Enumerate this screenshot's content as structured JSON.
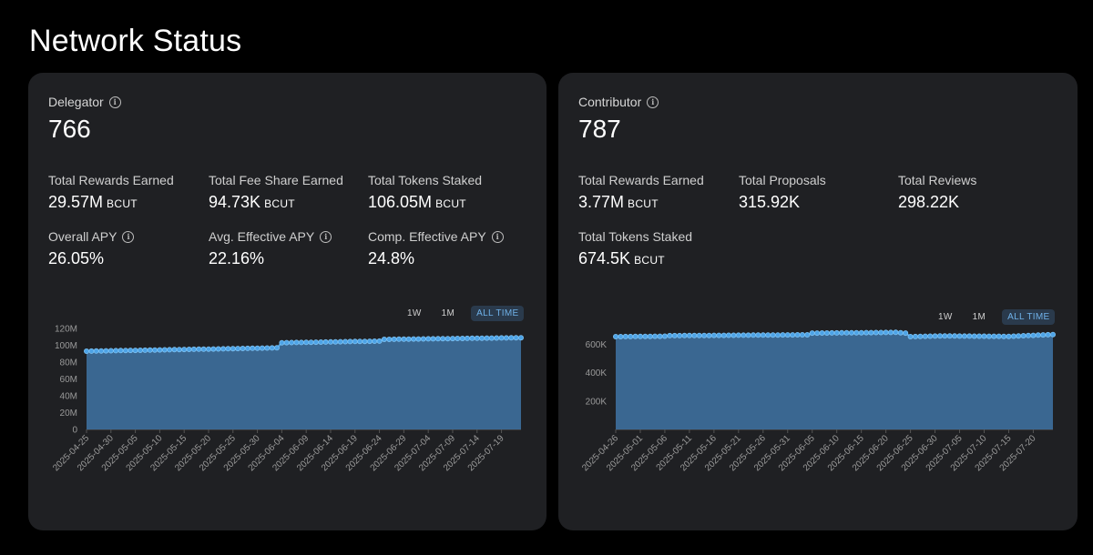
{
  "page": {
    "title": "Network Status"
  },
  "delegator": {
    "label": "Delegator",
    "count": "766",
    "stats": [
      {
        "label": "Total Rewards Earned",
        "value": "29.57M",
        "unit": "BCUT",
        "info": false
      },
      {
        "label": "Total Fee Share Earned",
        "value": "94.73K",
        "unit": "BCUT",
        "info": false
      },
      {
        "label": "Total Tokens Staked",
        "value": "106.05M",
        "unit": "BCUT",
        "info": false
      },
      {
        "label": "Overall APY",
        "value": "26.05%",
        "unit": "",
        "info": true
      },
      {
        "label": "Avg. Effective APY",
        "value": "22.16%",
        "unit": "",
        "info": true
      },
      {
        "label": "Comp. Effective APY",
        "value": "24.8%",
        "unit": "",
        "info": true
      }
    ],
    "range_tabs": [
      "1W",
      "1M",
      "ALL TIME"
    ],
    "active_range": "ALL TIME"
  },
  "contributor": {
    "label": "Contributor",
    "count": "787",
    "stats": [
      {
        "label": "Total Rewards Earned",
        "value": "3.77M",
        "unit": "BCUT",
        "info": false
      },
      {
        "label": "Total Proposals",
        "value": "315.92K",
        "unit": "",
        "info": false
      },
      {
        "label": "Total Reviews",
        "value": "298.22K",
        "unit": "",
        "info": false
      },
      {
        "label": "Total Tokens Staked",
        "value": "674.5K",
        "unit": "BCUT",
        "info": false
      }
    ],
    "range_tabs": [
      "1W",
      "1M",
      "ALL TIME"
    ],
    "active_range": "ALL TIME"
  },
  "colors": {
    "line": "#4da3e6",
    "fill": "#3d6e9b",
    "card": "#1f2023"
  },
  "chart_data": [
    {
      "type": "area",
      "x_ticks": [
        "2025-04-25",
        "2025-04-30",
        "2025-05-05",
        "2025-05-10",
        "2025-05-15",
        "2025-05-20",
        "2025-05-25",
        "2025-05-30",
        "2025-06-04",
        "2025-06-09",
        "2025-06-14",
        "2025-06-19",
        "2025-06-24",
        "2025-06-29",
        "2025-07-04",
        "2025-07-09",
        "2025-07-14",
        "2025-07-19"
      ],
      "y_ticks": [
        "0",
        "20M",
        "40M",
        "60M",
        "80M",
        "100M",
        "120M"
      ],
      "ylim": [
        0,
        120000000
      ],
      "x_start": "2025-04-25",
      "x_end": "2025-07-23",
      "series": [
        {
          "points": [
            [
              "2025-04-25",
              93000000
            ],
            [
              "2025-05-05",
              94000000
            ],
            [
              "2025-05-15",
              95000000
            ],
            [
              "2025-05-25",
              96000000
            ],
            [
              "2025-06-03",
              97000000
            ],
            [
              "2025-06-04",
              103000000
            ],
            [
              "2025-06-14",
              104000000
            ],
            [
              "2025-06-24",
              105000000
            ],
            [
              "2025-06-25",
              107000000
            ],
            [
              "2025-07-09",
              108000000
            ],
            [
              "2025-07-23",
              109000000
            ]
          ]
        }
      ]
    },
    {
      "type": "area",
      "x_ticks": [
        "2025-04-26",
        "2025-05-01",
        "2025-05-06",
        "2025-05-11",
        "2025-05-16",
        "2025-05-21",
        "2025-05-26",
        "2025-05-31",
        "2025-06-05",
        "2025-06-10",
        "2025-06-15",
        "2025-06-20",
        "2025-06-25",
        "2025-06-30",
        "2025-07-05",
        "2025-07-10",
        "2025-07-15",
        "2025-07-20"
      ],
      "y_ticks": [
        "200K",
        "400K",
        "600K"
      ],
      "ylim": [
        0,
        700000
      ],
      "x_start": "2025-04-26",
      "x_end": "2025-07-24",
      "series": [
        {
          "points": [
            [
              "2025-04-26",
              655000
            ],
            [
              "2025-05-06",
              658000
            ],
            [
              "2025-05-07",
              662000
            ],
            [
              "2025-05-21",
              665000
            ],
            [
              "2025-06-04",
              668000
            ],
            [
              "2025-06-05",
              680000
            ],
            [
              "2025-06-22",
              685000
            ],
            [
              "2025-06-24",
              680000
            ],
            [
              "2025-06-25",
              655000
            ],
            [
              "2025-07-01",
              660000
            ],
            [
              "2025-07-15",
              657000
            ],
            [
              "2025-07-24",
              670000
            ]
          ]
        }
      ]
    }
  ]
}
